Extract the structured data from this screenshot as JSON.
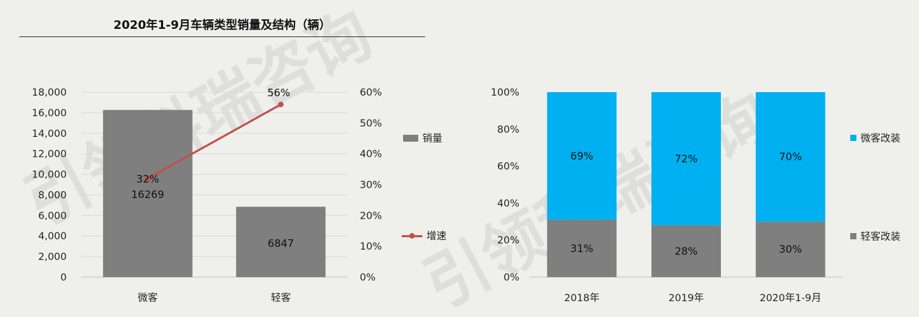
{
  "left_chart": {
    "title": "2020年1-9月车辆类型销量及结构（辆）",
    "chart_data": {
      "type": "bar",
      "categories": [
        "微客",
        "轻客"
      ],
      "series": [
        {
          "name": "销量",
          "type": "bar",
          "axis": "left",
          "values": [
            16269,
            6847
          ],
          "labels": [
            "16269",
            "6847"
          ],
          "color": "#7f7f7f"
        },
        {
          "name": "增速",
          "type": "line",
          "axis": "right",
          "values": [
            32,
            56
          ],
          "labels": [
            "32%",
            "56%"
          ],
          "color": "#c0504d"
        }
      ],
      "y_left": {
        "ylim": [
          0,
          18000
        ],
        "ticks": [
          "0",
          "2,000",
          "4,000",
          "6,000",
          "8,000",
          "10,000",
          "12,000",
          "14,000",
          "16,000",
          "18,000"
        ]
      },
      "y_right": {
        "ylim": [
          0,
          60
        ],
        "ticks": [
          "0%",
          "10%",
          "20%",
          "30%",
          "40%",
          "50%",
          "60%"
        ]
      },
      "grid": true,
      "legend": "right"
    }
  },
  "right_chart": {
    "chart_data": {
      "type": "bar",
      "stacked": true,
      "categories": [
        "2018年",
        "2019年",
        "2020年1-9月"
      ],
      "series": [
        {
          "name": "轻客改装",
          "values": [
            31,
            28,
            30
          ],
          "labels": [
            "31%",
            "28%",
            "30%"
          ],
          "color": "#7f7f7f"
        },
        {
          "name": "微客改装",
          "values": [
            69,
            72,
            70
          ],
          "labels": [
            "69%",
            "72%",
            "70%"
          ],
          "color": "#00b0f0"
        }
      ],
      "y": {
        "ylim": [
          0,
          100
        ],
        "ticks": [
          "0%",
          "20%",
          "40%",
          "60%",
          "80%",
          "100%"
        ]
      },
      "grid": false,
      "legend": "right"
    }
  },
  "watermark": {
    "text": "引领科瑞咨询",
    "color": "#d9d9d6"
  }
}
